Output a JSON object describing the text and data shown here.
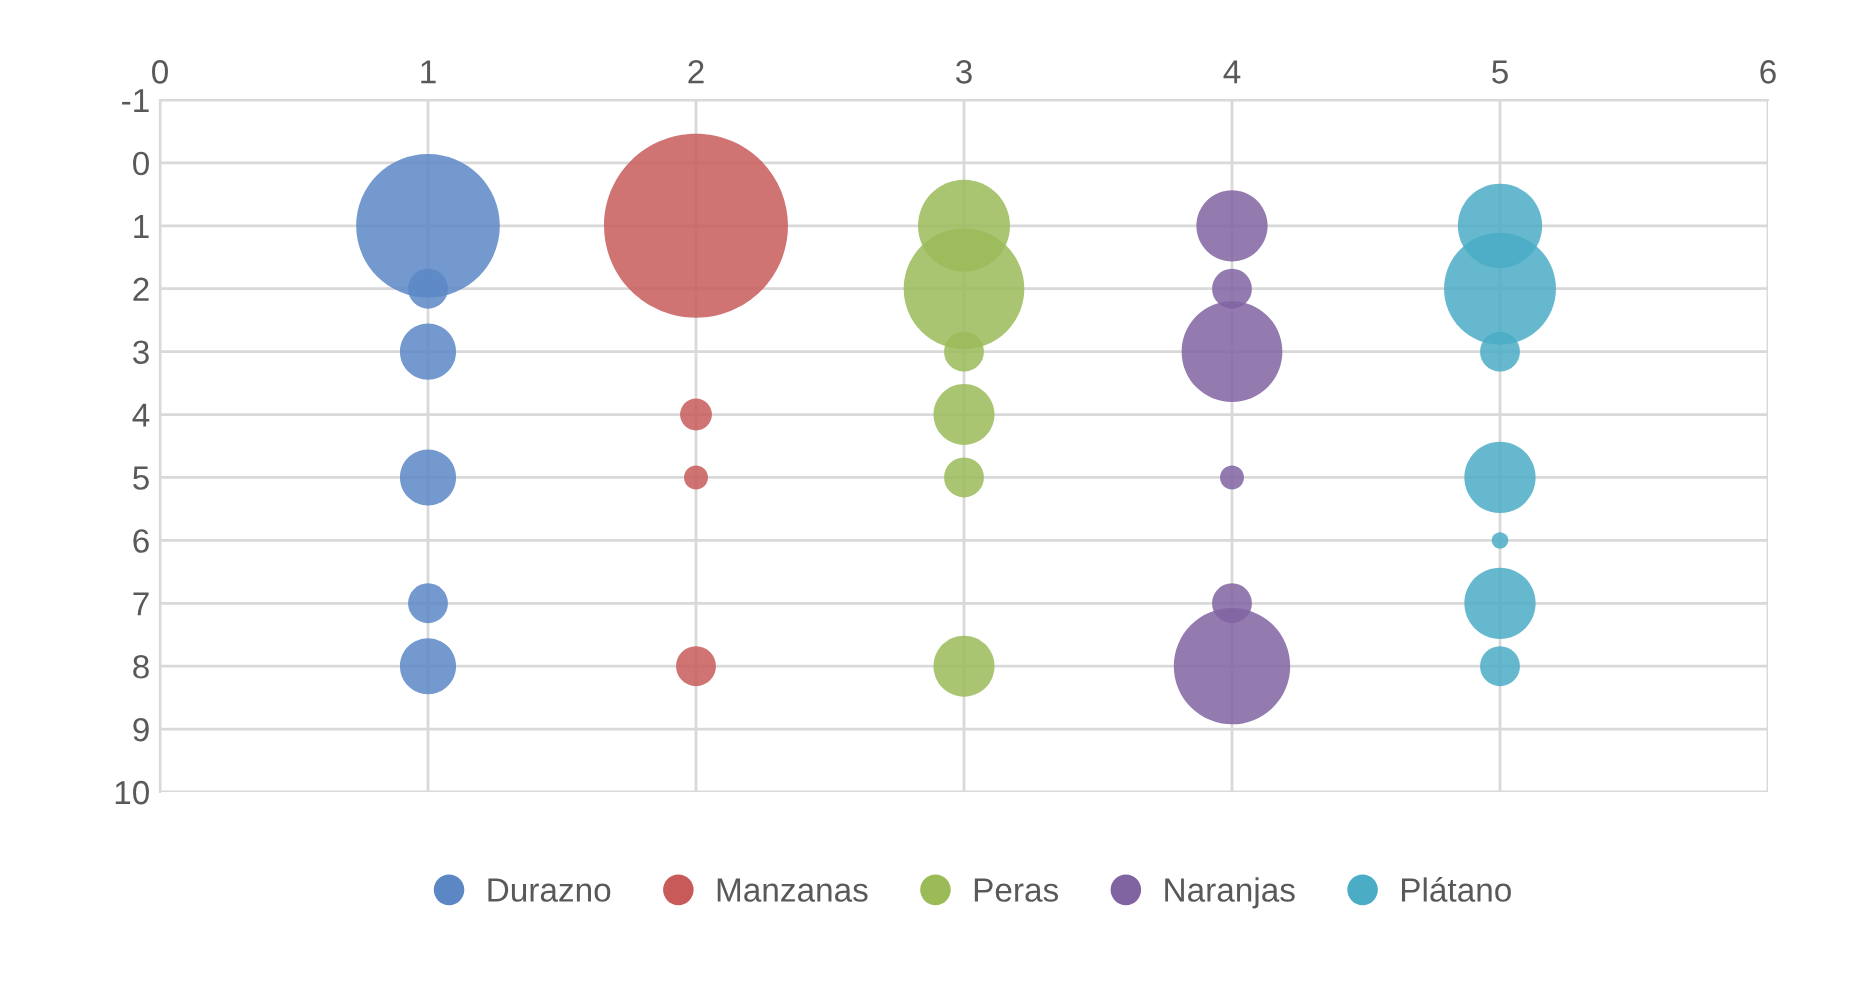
{
  "chart_data": {
    "type": "bubble",
    "xlim": [
      0,
      6
    ],
    "xticks": [
      0,
      1,
      2,
      3,
      4,
      5,
      6
    ],
    "ylim": [
      10,
      -1
    ],
    "yticks": [
      -1,
      0,
      1,
      2,
      3,
      4,
      5,
      6,
      7,
      8,
      9,
      10
    ],
    "grid": true,
    "legend": "bottom",
    "marker": "circle",
    "series": [
      {
        "name": "Durazno",
        "color": "#5b87c5",
        "x": [
          1,
          1,
          1,
          1,
          1,
          1
        ],
        "values": [
          1,
          2,
          3,
          5,
          7,
          8
        ],
        "sizes": [
          0.61,
          0.047,
          0.093,
          0.093,
          0.047,
          0.093
        ]
      },
      {
        "name": "Manzanas",
        "color": "#c85a5a",
        "x": [
          2,
          2,
          2,
          2
        ],
        "values": [
          1,
          4,
          5,
          8
        ],
        "sizes": [
          1,
          0.03,
          0.017,
          0.047
        ]
      },
      {
        "name": "Peras",
        "color": "#9bbb59",
        "x": [
          3,
          3,
          3,
          3,
          3,
          3
        ],
        "values": [
          1,
          2,
          3,
          4,
          5,
          8
        ],
        "sizes": [
          0.25,
          0.43,
          0.047,
          0.11,
          0.047,
          0.11
        ]
      },
      {
        "name": "Naranjas",
        "color": "#8064a2",
        "x": [
          4,
          4,
          4,
          4,
          4,
          4
        ],
        "values": [
          1,
          2,
          3,
          5,
          7,
          8
        ],
        "sizes": [
          0.15,
          0.047,
          0.3,
          0.017,
          0.047,
          0.4
        ]
      },
      {
        "name": "Plátano",
        "color": "#4bacc6",
        "x": [
          5,
          5,
          5,
          5,
          5,
          5,
          5
        ],
        "values": [
          1,
          2,
          3,
          5,
          6,
          7,
          8
        ],
        "sizes": [
          0.21,
          0.37,
          0.047,
          0.15,
          0.008,
          0.15,
          0.047
        ]
      }
    ]
  }
}
